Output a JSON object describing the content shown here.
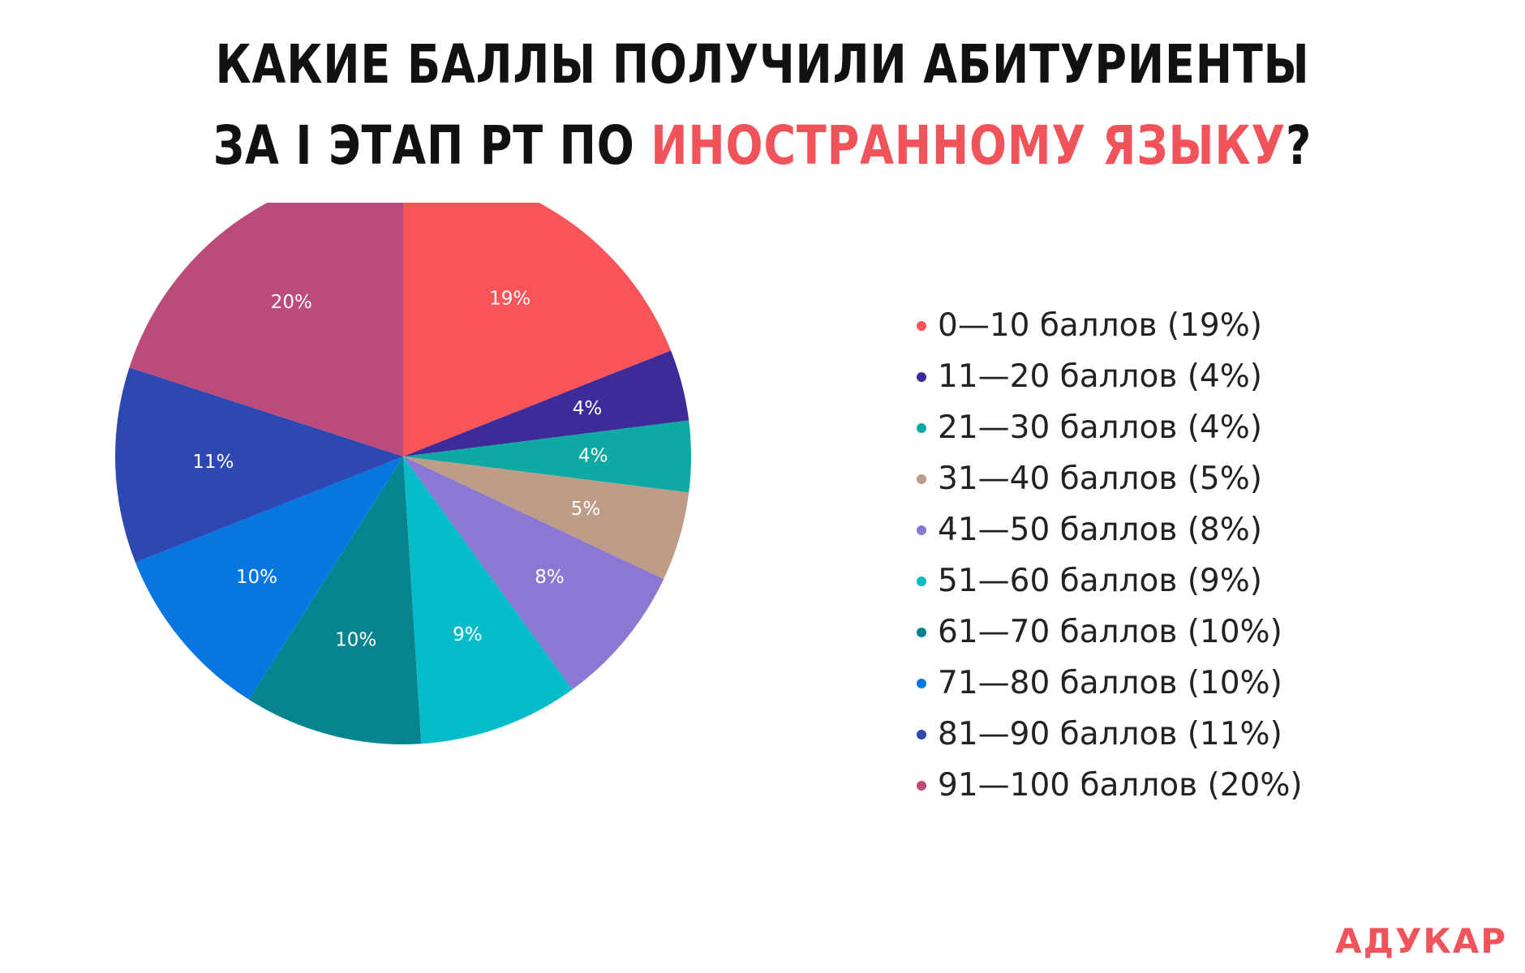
{
  "title": {
    "line1": "КАКИЕ БАЛЛЫ ПОЛУЧИЛИ АБИТУРИЕНТЫ",
    "line2_prefix": "ЗА I ЭТАП РТ ПО ",
    "line2_accent": "ИНОСТРАННОМУ ЯЗЫКУ",
    "line2_suffix": "?"
  },
  "brand": "АДУКАР",
  "colors": {
    "accent": "#f0545a",
    "title": "#111111"
  },
  "chart_data": {
    "type": "pie",
    "legend_position": "right",
    "slices": [
      {
        "legend": "0—10 баллов (19%)",
        "label": "19%",
        "value": 19,
        "color": "#f95457"
      },
      {
        "legend": "11—20 баллов (4%)",
        "label": "4%",
        "value": 4,
        "color": "#3e2a99"
      },
      {
        "legend": "21—30 баллов (4%)",
        "label": "4%",
        "value": 4,
        "color": "#0fa9a4"
      },
      {
        "legend": "31—40 баллов (5%)",
        "label": "5%",
        "value": 5,
        "color": "#bd9c88"
      },
      {
        "legend": "41—50 баллов (8%)",
        "label": "8%",
        "value": 8,
        "color": "#8c77d3"
      },
      {
        "legend": "51—60 баллов (9%)",
        "label": "9%",
        "value": 9,
        "color": "#05bcc8"
      },
      {
        "legend": "61—70 баллов (10%)",
        "label": "10%",
        "value": 10,
        "color": "#07848f"
      },
      {
        "legend": "71—80 баллов (10%)",
        "label": "10%",
        "value": 10,
        "color": "#0677e1"
      },
      {
        "legend": "81—90 баллов (11%)",
        "label": "11%",
        "value": 11,
        "color": "#2d48b2"
      },
      {
        "legend": "91—100 баллов (20%)",
        "label": "20%",
        "value": 20,
        "color": "#bb4b7b"
      }
    ]
  }
}
